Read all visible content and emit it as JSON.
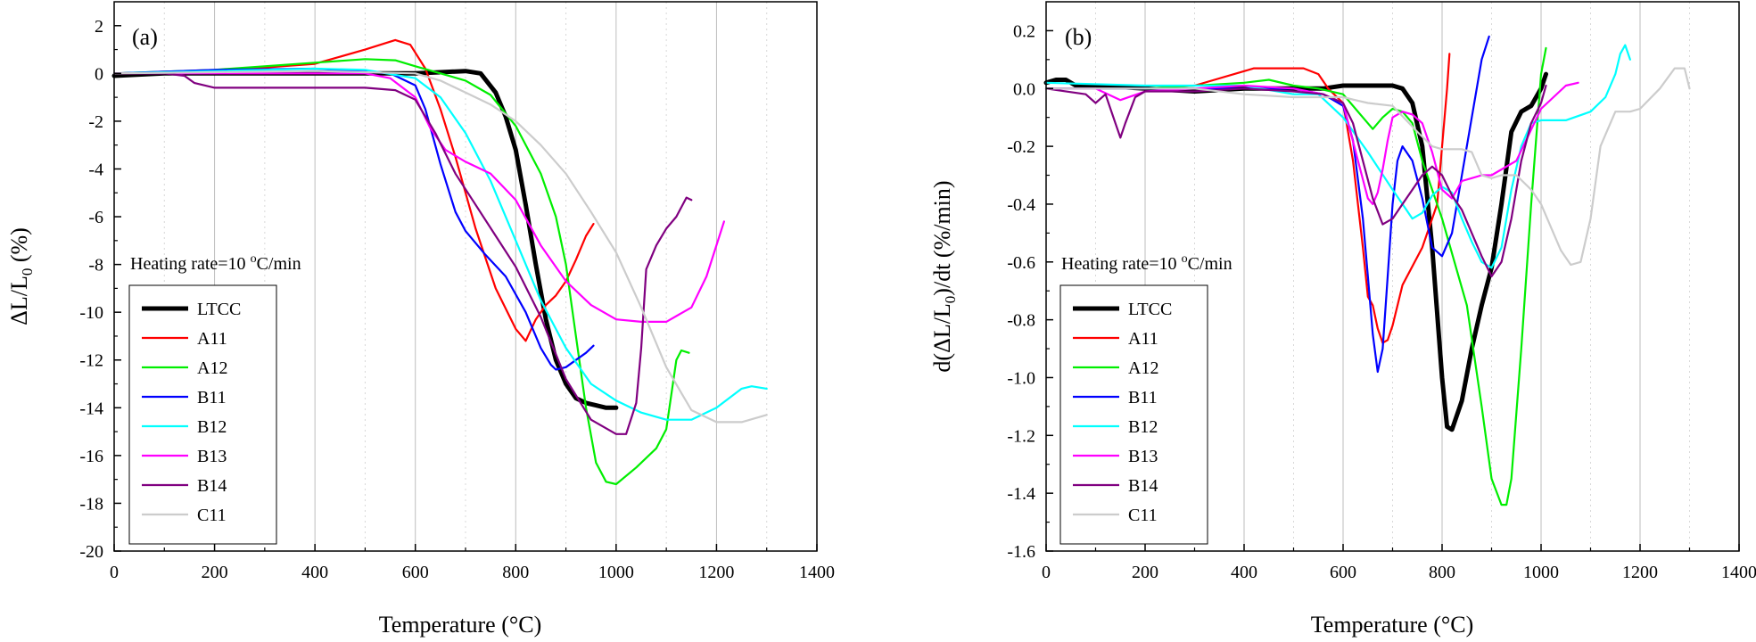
{
  "chart_data": [
    {
      "type": "line",
      "panel_label": "(a)",
      "title": "",
      "xlabel": "Temperature (°C)",
      "ylabel": "ΔL/L0 (%)",
      "ylabel_main": "ΔL/L",
      "ylabel_sub": "0",
      "ylabel_tail": " (%)",
      "xlim": [
        0,
        1400
      ],
      "ylim": [
        -20,
        3
      ],
      "xticks": [
        0,
        200,
        400,
        600,
        800,
        1000,
        1200,
        1400
      ],
      "xtick_labels": [
        "0",
        "200",
        "400",
        "600",
        "800",
        "1000",
        "1200",
        "1400"
      ],
      "yticks": [
        2,
        0,
        -2,
        -4,
        -6,
        -8,
        -10,
        -12,
        -14,
        -16,
        -18,
        -20
      ],
      "ytick_labels": [
        "2",
        "0",
        "-2",
        "-4",
        "-6",
        "-8",
        "-10",
        "-12",
        "-14",
        "-16",
        "-18",
        "-20"
      ],
      "grid": "vertical",
      "annotation": "Heating rate=10 °C/min",
      "annotation_main": "Heating rate=10 ",
      "annotation_sup": "o",
      "annotation_tail": "C/min",
      "legend_position": "bottom-left",
      "series": [
        {
          "name": "LTCC",
          "color": "#000000",
          "x": [
            0,
            100,
            200,
            300,
            400,
            500,
            600,
            650,
            700,
            730,
            760,
            780,
            800,
            820,
            840,
            860,
            880,
            900,
            920,
            940,
            960,
            980,
            1000
          ],
          "y": [
            -0.1,
            0,
            0,
            0,
            0,
            0,
            0,
            0.05,
            0.1,
            0,
            -0.8,
            -1.8,
            -3.2,
            -5.5,
            -8,
            -10.3,
            -12,
            -13,
            -13.6,
            -13.8,
            -13.9,
            -14,
            -14
          ]
        },
        {
          "name": "A11",
          "color": "#ff0000",
          "x": [
            0,
            200,
            400,
            500,
            560,
            590,
            620,
            650,
            680,
            720,
            760,
            800,
            820,
            840,
            860,
            880,
            900,
            920,
            940,
            955
          ],
          "y": [
            0,
            0.1,
            0.4,
            1,
            1.4,
            1.2,
            0.2,
            -1.5,
            -3.5,
            -6.5,
            -9,
            -10.7,
            -11.2,
            -10.3,
            -9.7,
            -9.3,
            -8.7,
            -7.8,
            -6.8,
            -6.3
          ]
        },
        {
          "name": "A12",
          "color": "#00ee00",
          "x": [
            0,
            200,
            400,
            500,
            560,
            600,
            650,
            700,
            750,
            800,
            850,
            880,
            900,
            920,
            940,
            960,
            980,
            1000,
            1040,
            1080,
            1100,
            1120,
            1130,
            1145
          ],
          "y": [
            0,
            0.15,
            0.45,
            0.6,
            0.55,
            0.3,
            0,
            -0.3,
            -0.9,
            -2.2,
            -4.2,
            -6,
            -8,
            -11,
            -14,
            -16.3,
            -17.1,
            -17.2,
            -16.5,
            -15.7,
            -14.9,
            -12,
            -11.6,
            -11.7
          ]
        },
        {
          "name": "B11",
          "color": "#0000ff",
          "x": [
            0,
            200,
            400,
            550,
            600,
            620,
            650,
            680,
            700,
            740,
            780,
            820,
            850,
            870,
            880,
            900,
            920,
            940,
            955
          ],
          "y": [
            0,
            0.15,
            0.2,
            0,
            -0.5,
            -1.5,
            -3.8,
            -5.8,
            -6.6,
            -7.6,
            -8.5,
            -10,
            -11.5,
            -12.2,
            -12.4,
            -12.3,
            -12,
            -11.7,
            -11.4
          ]
        },
        {
          "name": "B12",
          "color": "#00ffff",
          "x": [
            0,
            200,
            400,
            500,
            600,
            650,
            700,
            750,
            800,
            850,
            900,
            950,
            1000,
            1050,
            1100,
            1150,
            1200,
            1250,
            1270,
            1300
          ],
          "y": [
            0,
            0.1,
            0.2,
            0.15,
            -0.2,
            -1,
            -2.5,
            -4.5,
            -7,
            -9.5,
            -11.5,
            -13,
            -13.7,
            -14.2,
            -14.5,
            -14.5,
            -14,
            -13.2,
            -13.1,
            -13.2
          ]
        },
        {
          "name": "B13",
          "color": "#ff00ff",
          "x": [
            0,
            100,
            200,
            300,
            400,
            500,
            550,
            600,
            630,
            660,
            700,
            750,
            800,
            850,
            900,
            950,
            1000,
            1050,
            1100,
            1150,
            1180,
            1215
          ],
          "y": [
            0,
            0,
            0,
            0,
            0,
            0,
            -0.2,
            -1,
            -2.3,
            -3.2,
            -3.7,
            -4.2,
            -5.3,
            -7.2,
            -8.7,
            -9.7,
            -10.3,
            -10.4,
            -10.4,
            -9.8,
            -8.5,
            -6.2
          ]
        },
        {
          "name": "B14",
          "color": "#800080",
          "x": [
            0,
            100,
            140,
            160,
            200,
            300,
            400,
            500,
            560,
            600,
            640,
            680,
            720,
            760,
            800,
            850,
            900,
            950,
            1000,
            1020,
            1040,
            1050,
            1060,
            1080,
            1100,
            1120,
            1140,
            1150
          ],
          "y": [
            0,
            0,
            -0.1,
            -0.4,
            -0.6,
            -0.6,
            -0.6,
            -0.6,
            -0.7,
            -1.1,
            -2.5,
            -4.2,
            -5.5,
            -6.8,
            -8.1,
            -10.2,
            -12.8,
            -14.5,
            -15.1,
            -15.1,
            -13.8,
            -11.5,
            -8.2,
            -7.2,
            -6.5,
            -6,
            -5.2,
            -5.3
          ]
        },
        {
          "name": "C11",
          "color": "#cccccc",
          "x": [
            0,
            200,
            400,
            600,
            650,
            700,
            750,
            800,
            850,
            900,
            950,
            1000,
            1050,
            1100,
            1150,
            1200,
            1250,
            1300
          ],
          "y": [
            0,
            0.05,
            0.1,
            0,
            -0.3,
            -0.8,
            -1.3,
            -2,
            -3,
            -4.2,
            -5.8,
            -7.5,
            -9.8,
            -12.3,
            -14.1,
            -14.6,
            -14.6,
            -14.3
          ]
        }
      ]
    },
    {
      "type": "line",
      "panel_label": "(b)",
      "title": "",
      "xlabel": "Temperature (°C)",
      "ylabel": "d(ΔL/L0)/dt (%/min)",
      "ylabel_main": "d(ΔL/L",
      "ylabel_sub": "0",
      "ylabel_tail": ")/dt (%/min)",
      "xlim": [
        0,
        1400
      ],
      "ylim": [
        -1.6,
        0.3
      ],
      "xticks": [
        0,
        200,
        400,
        600,
        800,
        1000,
        1200,
        1400
      ],
      "xtick_labels": [
        "0",
        "200",
        "400",
        "600",
        "800",
        "1000",
        "1200",
        "1400"
      ],
      "yticks": [
        0.2,
        0,
        -0.2,
        -0.4,
        -0.6,
        -0.8,
        -1.0,
        -1.2,
        -1.4,
        -1.6
      ],
      "ytick_labels": [
        "0.2",
        "0.0",
        "-0.2",
        "-0.4",
        "-0.6",
        "-0.8",
        "-1.0",
        "-1.2",
        "-1.4",
        "-1.6"
      ],
      "grid": "vertical",
      "annotation": "Heating rate=10 °C/min",
      "annotation_main": "Heating rate=10 ",
      "annotation_sup": "o",
      "annotation_tail": "C/min",
      "legend_position": "bottom-left",
      "series": [
        {
          "name": "LTCC",
          "color": "#000000",
          "x": [
            0,
            20,
            40,
            60,
            100,
            200,
            300,
            400,
            500,
            560,
            600,
            650,
            700,
            720,
            740,
            760,
            780,
            800,
            810,
            820,
            840,
            860,
            880,
            900,
            920,
            940,
            960,
            980,
            1000,
            1010
          ],
          "y": [
            0.02,
            0.03,
            0.03,
            0.01,
            0.01,
            0,
            -0.01,
            0,
            0,
            0,
            0.01,
            0.01,
            0.01,
            0,
            -0.05,
            -0.2,
            -0.55,
            -1,
            -1.17,
            -1.18,
            -1.08,
            -0.9,
            -0.75,
            -0.62,
            -0.4,
            -0.15,
            -0.08,
            -0.06,
            0,
            0.05
          ]
        },
        {
          "name": "A11",
          "color": "#ff0000",
          "x": [
            0,
            200,
            300,
            400,
            420,
            480,
            520,
            550,
            570,
            600,
            620,
            640,
            650,
            660,
            670,
            680,
            690,
            700,
            720,
            760,
            790,
            800,
            810,
            815
          ],
          "y": [
            0,
            0,
            0.01,
            0.06,
            0.07,
            0.07,
            0.07,
            0.05,
            0,
            -0.05,
            -0.25,
            -0.55,
            -0.72,
            -0.75,
            -0.83,
            -0.88,
            -0.87,
            -0.82,
            -0.68,
            -0.55,
            -0.4,
            -0.2,
            0,
            0.12
          ]
        },
        {
          "name": "A12",
          "color": "#00ee00",
          "x": [
            0,
            200,
            400,
            450,
            500,
            550,
            600,
            640,
            660,
            680,
            700,
            720,
            740,
            760,
            800,
            850,
            880,
            900,
            920,
            930,
            940,
            960,
            980,
            1000,
            1010
          ],
          "y": [
            0,
            0,
            0.02,
            0.03,
            0.01,
            0,
            -0.02,
            -0.1,
            -0.14,
            -0.1,
            -0.07,
            -0.08,
            -0.12,
            -0.25,
            -0.45,
            -0.75,
            -1.1,
            -1.35,
            -1.44,
            -1.44,
            -1.35,
            -0.9,
            -0.4,
            0.05,
            0.14
          ]
        },
        {
          "name": "B11",
          "color": "#0000ff",
          "x": [
            0,
            200,
            400,
            500,
            560,
            600,
            620,
            640,
            650,
            660,
            670,
            680,
            690,
            700,
            710,
            720,
            740,
            760,
            780,
            800,
            820,
            840,
            860,
            880,
            895
          ],
          "y": [
            0,
            0,
            0,
            0,
            -0.02,
            -0.06,
            -0.18,
            -0.45,
            -0.65,
            -0.85,
            -0.98,
            -0.9,
            -0.65,
            -0.4,
            -0.25,
            -0.2,
            -0.25,
            -0.38,
            -0.55,
            -0.58,
            -0.5,
            -0.3,
            -0.1,
            0.1,
            0.18
          ]
        },
        {
          "name": "B12",
          "color": "#00ffff",
          "x": [
            0,
            200,
            400,
            500,
            550,
            600,
            650,
            700,
            720,
            740,
            760,
            780,
            800,
            820,
            840,
            860,
            880,
            900,
            920,
            940,
            960,
            980,
            1000,
            1050,
            1100,
            1130,
            1150,
            1160,
            1170,
            1180
          ],
          "y": [
            0.02,
            0.01,
            0.01,
            -0.02,
            -0.02,
            -0.1,
            -0.22,
            -0.35,
            -0.4,
            -0.45,
            -0.43,
            -0.37,
            -0.34,
            -0.36,
            -0.45,
            -0.53,
            -0.6,
            -0.62,
            -0.55,
            -0.35,
            -0.2,
            -0.12,
            -0.11,
            -0.11,
            -0.08,
            -0.03,
            0.05,
            0.12,
            0.15,
            0.1
          ]
        },
        {
          "name": "B13",
          "color": "#ff00ff",
          "x": [
            0,
            100,
            150,
            200,
            300,
            400,
            500,
            560,
            600,
            630,
            650,
            660,
            670,
            680,
            690,
            700,
            720,
            740,
            760,
            780,
            800,
            820,
            840,
            860,
            880,
            900,
            950,
            1000,
            1050,
            1075
          ],
          "y": [
            0,
            0,
            -0.04,
            -0.01,
            0,
            0.01,
            0,
            -0.02,
            -0.05,
            -0.25,
            -0.38,
            -0.4,
            -0.36,
            -0.28,
            -0.18,
            -0.1,
            -0.08,
            -0.09,
            -0.12,
            -0.22,
            -0.35,
            -0.38,
            -0.32,
            -0.31,
            -0.3,
            -0.3,
            -0.25,
            -0.07,
            0.01,
            0.02
          ]
        },
        {
          "name": "B14",
          "color": "#800080",
          "x": [
            0,
            80,
            100,
            120,
            140,
            150,
            160,
            180,
            200,
            300,
            400,
            500,
            560,
            600,
            620,
            640,
            660,
            680,
            700,
            720,
            740,
            760,
            780,
            800,
            820,
            840,
            860,
            880,
            900,
            920,
            940,
            960,
            980,
            1000,
            1010
          ],
          "y": [
            0,
            -0.02,
            -0.05,
            -0.02,
            -0.12,
            -0.17,
            -0.12,
            -0.03,
            -0.01,
            -0.01,
            0,
            -0.01,
            -0.02,
            -0.05,
            -0.12,
            -0.25,
            -0.38,
            -0.47,
            -0.45,
            -0.4,
            -0.35,
            -0.3,
            -0.27,
            -0.3,
            -0.37,
            -0.42,
            -0.5,
            -0.58,
            -0.65,
            -0.6,
            -0.45,
            -0.25,
            -0.12,
            -0.05,
            0.01
          ]
        },
        {
          "name": "C11",
          "color": "#cccccc",
          "x": [
            0,
            100,
            200,
            300,
            400,
            500,
            600,
            650,
            700,
            750,
            780,
            800,
            820,
            840,
            860,
            880,
            900,
            920,
            950,
            980,
            1000,
            1020,
            1040,
            1060,
            1080,
            1100,
            1120,
            1150,
            1180,
            1200,
            1240,
            1270,
            1290,
            1300
          ],
          "y": [
            0,
            0,
            0,
            0,
            -0.02,
            -0.03,
            -0.03,
            -0.05,
            -0.06,
            -0.15,
            -0.2,
            -0.21,
            -0.21,
            -0.21,
            -0.22,
            -0.3,
            -0.31,
            -0.3,
            -0.3,
            -0.35,
            -0.4,
            -0.48,
            -0.56,
            -0.61,
            -0.6,
            -0.45,
            -0.2,
            -0.08,
            -0.08,
            -0.07,
            0,
            0.07,
            0.07,
            0
          ]
        }
      ]
    }
  ]
}
